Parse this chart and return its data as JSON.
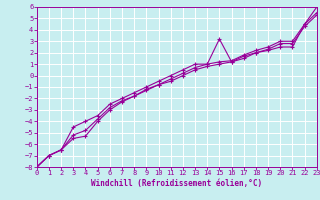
{
  "xlabel": "Windchill (Refroidissement éolien,°C)",
  "background_color": "#c8eef0",
  "grid_color": "#ffffff",
  "line_color": "#990099",
  "xlim": [
    0,
    23
  ],
  "ylim": [
    -8,
    6
  ],
  "xticks": [
    0,
    1,
    2,
    3,
    4,
    5,
    6,
    7,
    8,
    9,
    10,
    11,
    12,
    13,
    14,
    15,
    16,
    17,
    18,
    19,
    20,
    21,
    22,
    23
  ],
  "yticks": [
    -8,
    -7,
    -6,
    -5,
    -4,
    -3,
    -2,
    -1,
    0,
    1,
    2,
    3,
    4,
    5,
    6
  ],
  "line1_x": [
    0,
    1,
    2,
    3,
    4,
    5,
    6,
    7,
    8,
    9,
    10,
    11,
    12,
    13,
    14,
    15,
    16,
    17,
    18,
    19,
    20,
    21,
    22,
    23
  ],
  "line1_y": [
    -8,
    -7,
    -6.5,
    -4.5,
    -4,
    -3.5,
    -2.5,
    -2,
    -1.5,
    -1,
    -0.5,
    0,
    0.5,
    1,
    1,
    3.2,
    1.2,
    1.5,
    2,
    2.2,
    2.5,
    2.5,
    4.5,
    6
  ],
  "line2_x": [
    0,
    1,
    2,
    3,
    4,
    5,
    6,
    7,
    8,
    9,
    10,
    11,
    12,
    13,
    14,
    15,
    16,
    17,
    18,
    19,
    20,
    21,
    22,
    23
  ],
  "line2_y": [
    -8,
    -7,
    -6.5,
    -5.2,
    -4.8,
    -3.8,
    -2.8,
    -2.2,
    -1.8,
    -1.2,
    -0.8,
    -0.3,
    0.2,
    0.7,
    1.0,
    1.2,
    1.3,
    1.8,
    2.2,
    2.5,
    3.0,
    3.0,
    4.5,
    5.5
  ],
  "line3_x": [
    0,
    1,
    2,
    3,
    4,
    5,
    6,
    7,
    8,
    9,
    10,
    11,
    12,
    13,
    14,
    15,
    16,
    17,
    18,
    19,
    20,
    21,
    22,
    23
  ],
  "line3_y": [
    -8,
    -7,
    -6.5,
    -5.5,
    -5.3,
    -4.0,
    -3.0,
    -2.3,
    -1.8,
    -1.3,
    -0.8,
    -0.5,
    0.0,
    0.5,
    0.8,
    1.0,
    1.2,
    1.7,
    2.0,
    2.3,
    2.8,
    2.8,
    4.3,
    5.3
  ],
  "tick_fontsize": 5,
  "xlabel_fontsize": 5.5
}
